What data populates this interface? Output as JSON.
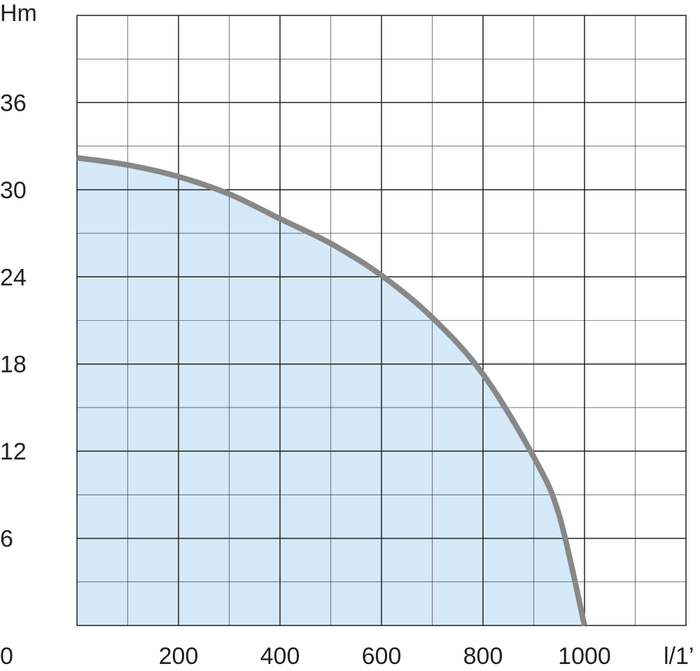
{
  "chart_data": {
    "type": "area",
    "title": "",
    "ylabel": "Hm",
    "xlabel": "l/1’",
    "xlim": [
      0,
      1200
    ],
    "ylim": [
      0,
      42
    ],
    "x_ticks": [
      {
        "value": 0,
        "label": "0"
      },
      {
        "value": 200,
        "label": "200"
      },
      {
        "value": 400,
        "label": "400"
      },
      {
        "value": 600,
        "label": "600"
      },
      {
        "value": 800,
        "label": "800"
      },
      {
        "value": 1000,
        "label": "1000"
      }
    ],
    "y_ticks": [
      {
        "value": 6,
        "label": "6"
      },
      {
        "value": 12,
        "label": "12"
      },
      {
        "value": 18,
        "label": "18"
      },
      {
        "value": 24,
        "label": "24"
      },
      {
        "value": 30,
        "label": "30"
      },
      {
        "value": 36,
        "label": "36"
      }
    ],
    "grid": true,
    "series": [
      {
        "x": [
          0,
          100,
          200,
          300,
          400,
          500,
          600,
          700,
          800,
          900,
          950,
          1000
        ],
        "y": [
          32.2,
          31.7,
          30.9,
          29.7,
          28.0,
          26.3,
          24.1,
          21.2,
          17.3,
          11.6,
          7.6,
          0
        ]
      }
    ],
    "colors": {
      "line": "#888888",
      "fill": "#d5e9f8",
      "grid": "#231f20",
      "text": "#231f20"
    }
  }
}
